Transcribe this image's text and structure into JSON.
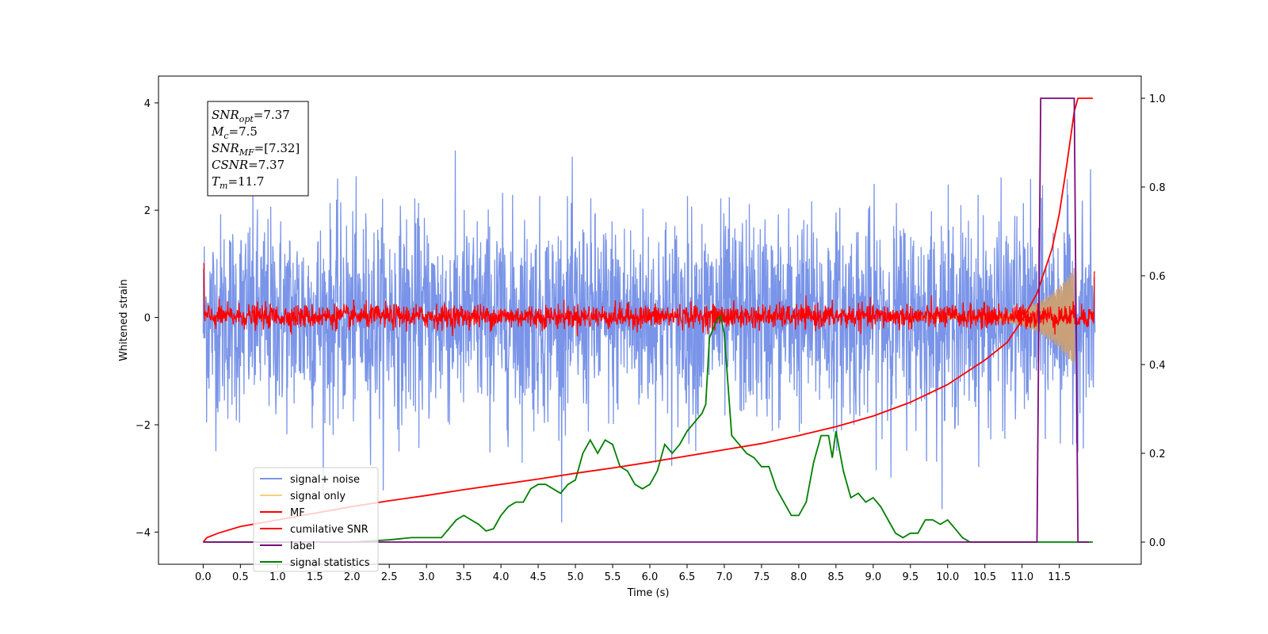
{
  "chart_data": {
    "type": "line",
    "title": "",
    "xlabel": "Time (s)",
    "ylabel": "Whitened strain",
    "xlim": [
      -0.6,
      12.6
    ],
    "ylim": [
      -4.6,
      4.5
    ],
    "y2lim": [
      -0.05,
      1.05
    ],
    "x_ticks": [
      0.0,
      0.5,
      1.0,
      1.5,
      2.0,
      2.5,
      3.0,
      3.5,
      4.0,
      4.5,
      5.0,
      5.5,
      6.0,
      6.5,
      7.0,
      7.5,
      8.0,
      8.5,
      9.0,
      9.5,
      10.0,
      10.5,
      11.0,
      11.5
    ],
    "x_tick_labels": [
      "0.0",
      "0.5",
      "1.0",
      "1.5",
      "2.0",
      "2.5",
      "3.0",
      "3.5",
      "4.0",
      "4.5",
      "5.0",
      "5.5",
      "6.0",
      "6.5",
      "7.0",
      "7.5",
      "8.0",
      "8.5",
      "9.0",
      "9.5",
      "10.0",
      "10.5",
      "11.0",
      "11.5"
    ],
    "y_ticks": [
      4,
      2,
      0,
      -2,
      -4
    ],
    "y_tick_labels": [
      "4",
      "2",
      "0",
      "−2",
      "−4"
    ],
    "y2_ticks": [
      1.0,
      0.8,
      0.6,
      0.4,
      0.2,
      0.0
    ],
    "y2_tick_labels": [
      "1.0",
      "0.8",
      "0.6",
      "0.4",
      "0.2",
      "0.0"
    ],
    "grid": false,
    "legend_position": "lower-left",
    "legend": [
      {
        "label": "signal+ noise",
        "color": "#7994e8"
      },
      {
        "label": "signal only",
        "color": "#f5cf7f"
      },
      {
        "label": "MF",
        "color": "#ff0000"
      },
      {
        "label": "cumilative SNR",
        "color": "#ff0000"
      },
      {
        "label": "label",
        "color": "#7a0a7a"
      },
      {
        "label": "signal statistics",
        "color": "#008000"
      }
    ],
    "annotation": {
      "lines": [
        {
          "sym": "SNR",
          "sub": "opt",
          "text": "=7.37"
        },
        {
          "sym": "M",
          "sub": "c",
          "text": "=7.5"
        },
        {
          "sym": "SNR",
          "sub": "MF",
          "text": "=[7.32]"
        },
        {
          "sym": "CSNR",
          "sub": "",
          "text": "=7.37"
        },
        {
          "sym": "T",
          "sub": "m",
          "text": "=11.7"
        }
      ]
    },
    "series": [
      {
        "name": "signal statistics",
        "axis": "right",
        "color": "#008000",
        "x": [
          0.0,
          0.5,
          1.0,
          1.5,
          2.0,
          2.5,
          2.8,
          3.0,
          3.2,
          3.4,
          3.5,
          3.6,
          3.7,
          3.8,
          3.9,
          4.0,
          4.1,
          4.2,
          4.3,
          4.4,
          4.5,
          4.6,
          4.7,
          4.8,
          4.9,
          5.0,
          5.1,
          5.2,
          5.3,
          5.4,
          5.5,
          5.6,
          5.7,
          5.8,
          5.9,
          6.0,
          6.1,
          6.2,
          6.3,
          6.4,
          6.5,
          6.6,
          6.7,
          6.75,
          6.8,
          6.9,
          6.95,
          7.0,
          7.1,
          7.2,
          7.3,
          7.4,
          7.5,
          7.6,
          7.7,
          7.8,
          7.9,
          8.0,
          8.1,
          8.2,
          8.3,
          8.4,
          8.45,
          8.5,
          8.6,
          8.7,
          8.8,
          8.9,
          9.0,
          9.1,
          9.2,
          9.3,
          9.4,
          9.5,
          9.6,
          9.7,
          9.8,
          9.9,
          10.0,
          10.1,
          10.2,
          10.3,
          10.5,
          11.0,
          11.5,
          11.95
        ],
        "values": [
          0.0,
          0.0,
          0.0,
          0.0,
          0.0,
          0.005,
          0.01,
          0.01,
          0.01,
          0.05,
          0.06,
          0.05,
          0.04,
          0.025,
          0.03,
          0.06,
          0.08,
          0.09,
          0.09,
          0.12,
          0.13,
          0.13,
          0.12,
          0.11,
          0.13,
          0.14,
          0.2,
          0.23,
          0.2,
          0.23,
          0.22,
          0.17,
          0.16,
          0.13,
          0.12,
          0.13,
          0.16,
          0.22,
          0.2,
          0.22,
          0.25,
          0.27,
          0.29,
          0.31,
          0.46,
          0.5,
          0.51,
          0.47,
          0.24,
          0.22,
          0.2,
          0.19,
          0.17,
          0.17,
          0.12,
          0.09,
          0.06,
          0.06,
          0.09,
          0.18,
          0.24,
          0.24,
          0.19,
          0.25,
          0.16,
          0.1,
          0.11,
          0.09,
          0.1,
          0.08,
          0.05,
          0.02,
          0.01,
          0.02,
          0.02,
          0.05,
          0.05,
          0.04,
          0.05,
          0.03,
          0.01,
          0.0,
          0.0,
          0.0,
          0.0,
          0.0
        ]
      },
      {
        "name": "cumilative SNR",
        "axis": "right",
        "color": "#ff0000",
        "x": [
          0.0,
          0.05,
          0.2,
          0.5,
          1.0,
          1.5,
          2.0,
          2.5,
          3.0,
          3.5,
          4.0,
          4.5,
          5.0,
          5.5,
          6.0,
          6.5,
          7.0,
          7.5,
          8.0,
          8.5,
          9.0,
          9.5,
          10.0,
          10.5,
          10.8,
          11.0,
          11.2,
          11.4,
          11.5,
          11.6,
          11.7,
          11.75,
          11.8,
          11.9,
          11.95
        ],
        "values": [
          0.0,
          0.01,
          0.02,
          0.035,
          0.05,
          0.065,
          0.08,
          0.093,
          0.105,
          0.118,
          0.13,
          0.142,
          0.155,
          0.167,
          0.18,
          0.194,
          0.208,
          0.222,
          0.24,
          0.26,
          0.284,
          0.315,
          0.355,
          0.41,
          0.45,
          0.5,
          0.56,
          0.66,
          0.74,
          0.85,
          0.97,
          1.0,
          1.0,
          1.0,
          1.0
        ]
      },
      {
        "name": "label",
        "axis": "right",
        "color": "#7a0a7a",
        "x": [
          0.0,
          11.2,
          11.25,
          11.7,
          11.75,
          11.9
        ],
        "values": [
          0.0,
          0.0,
          1.0,
          1.0,
          0.0,
          0.0
        ]
      }
    ]
  }
}
